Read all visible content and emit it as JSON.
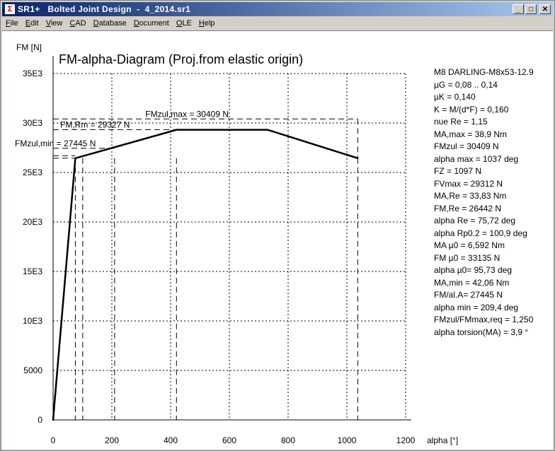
{
  "window": {
    "title": "SR1+   Bolted Joint Design  -  4_2014.sr1",
    "icon": "sr1-app-icon",
    "minimize": "_",
    "maximize": "□",
    "close": "✕"
  },
  "menu": [
    {
      "underline": "F",
      "rest": "ile"
    },
    {
      "underline": "E",
      "rest": "dit"
    },
    {
      "underline": "V",
      "rest": "iew"
    },
    {
      "underline": "C",
      "rest": "AD"
    },
    {
      "underline": "D",
      "rest": "atabase"
    },
    {
      "underline": "D",
      "rest": "ocument"
    },
    {
      "underline": "O",
      "rest": "LE"
    },
    {
      "underline": "H",
      "rest": "elp"
    }
  ],
  "chart_data": {
    "type": "line",
    "title": "FM-alpha-Diagram (Proj.from elastic origin)",
    "xlabel": "alpha [°]",
    "ylabel": "FM [N]",
    "xlim": [
      0,
      1200
    ],
    "ylim": [
      0,
      35000
    ],
    "x_ticks": [
      0,
      200,
      400,
      600,
      800,
      1000,
      1200
    ],
    "x_tick_labels": [
      "0",
      "200",
      "400",
      "600",
      "800",
      "1000",
      "1200"
    ],
    "y_ticks": [
      0,
      5000,
      10000,
      15000,
      20000,
      25000,
      30000,
      35000
    ],
    "y_tick_labels": [
      "0",
      "5000",
      "10E3",
      "15E3",
      "20E3",
      "25E3",
      "30E3",
      "35E3"
    ],
    "grid": true,
    "series": [
      {
        "x": [
          0,
          75.72,
          420,
          730,
          1037
        ],
        "y": [
          0,
          26442,
          29312,
          29312,
          26442
        ]
      }
    ],
    "reference_lines": [
      {
        "label": "FMzul,max = 30409 N",
        "value": 30409,
        "alpha": 1037
      },
      {
        "label": "FM,Rm = 29327 N",
        "value": 29327,
        "alpha": 420
      },
      {
        "label": "FMzul,min = 27445 N",
        "value": 27445,
        "alpha": 209.4
      }
    ],
    "dashed_verticals": [
      75.72,
      100.9,
      209.4,
      420,
      1037
    ],
    "extra_hlines": [
      26442,
      26700
    ]
  },
  "parameters": [
    "M8 DARLING-M8x53-12.9",
    "µG = 0,08 .. 0,14",
    "µK = 0,140",
    "K = M/(d*F) = 0,160",
    "nue Re = 1,15",
    "MA,max = 38,9 Nm",
    "FMzul = 30409 N",
    "alpha max = 1037 deg",
    "FZ = 1097 N",
    "FVmax = 29312 N",
    "MA,Re = 33,83 Nm",
    "FM,Re = 26442 N",
    "alpha Re = 75,72 deg",
    "alpha Rp0.2 = 100,9 deg",
    "MA µ0 = 6,592 Nm",
    "FM µ0 = 33135 N",
    "alpha µ0= 95,73 deg",
    "MA,min = 42,06 Nm",
    "FM/al.A= 27445 N",
    "alpha min = 209,4 deg",
    "FMzul/FMmax,req = 1,250",
    "alpha torsion(MA) = 3,9 °"
  ]
}
